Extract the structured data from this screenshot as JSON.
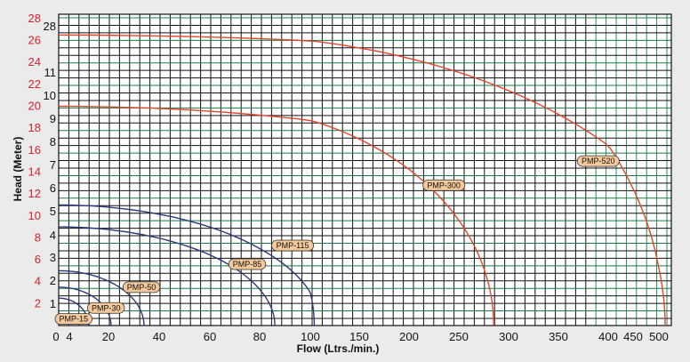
{
  "chart_data": {
    "type": "line",
    "xlabel": "Flow (Ltrs./min.)",
    "ylabel": "Head (Meter)",
    "x_ticks": [
      0,
      20,
      40,
      60,
      80,
      100,
      150,
      200,
      250,
      300,
      350,
      400,
      450,
      500
    ],
    "y_ticks_inner": [
      1,
      2,
      3,
      4,
      5,
      6,
      7,
      8,
      9,
      10,
      11,
      28
    ],
    "y_ticks_outer": [
      2,
      4,
      6,
      8,
      10,
      12,
      14,
      16,
      18,
      20,
      22,
      24,
      26,
      28
    ],
    "series": [
      {
        "name": "PMP-15",
        "shutoff_head": 2.5,
        "max_flow": 12,
        "color": "#2b3a7a"
      },
      {
        "name": "PMP-30",
        "shutoff_head": 3.5,
        "max_flow": 21,
        "color": "#2b3a7a"
      },
      {
        "name": "PMP-50",
        "shutoff_head": 5,
        "max_flow": 34,
        "color": "#2b3a7a"
      },
      {
        "name": "PMP-85",
        "shutoff_head": 9,
        "max_flow": 86,
        "color": "#2b3a7a"
      },
      {
        "name": "PMP-115",
        "shutoff_head": 11,
        "max_flow": 104,
        "color": "#2b3a7a"
      },
      {
        "name": "PMP-300",
        "shutoff_head": 20,
        "max_flow": 285,
        "color": "#e2452a"
      },
      {
        "name": "PMP-520",
        "shutoff_head": 26.5,
        "max_flow": 510,
        "color": "#e2452a"
      }
    ],
    "colors": {
      "grid": "#111111",
      "grid_green": "#1a7a4a",
      "tag_fill": "#f3c89a",
      "axis_red": "#d8202a"
    }
  }
}
